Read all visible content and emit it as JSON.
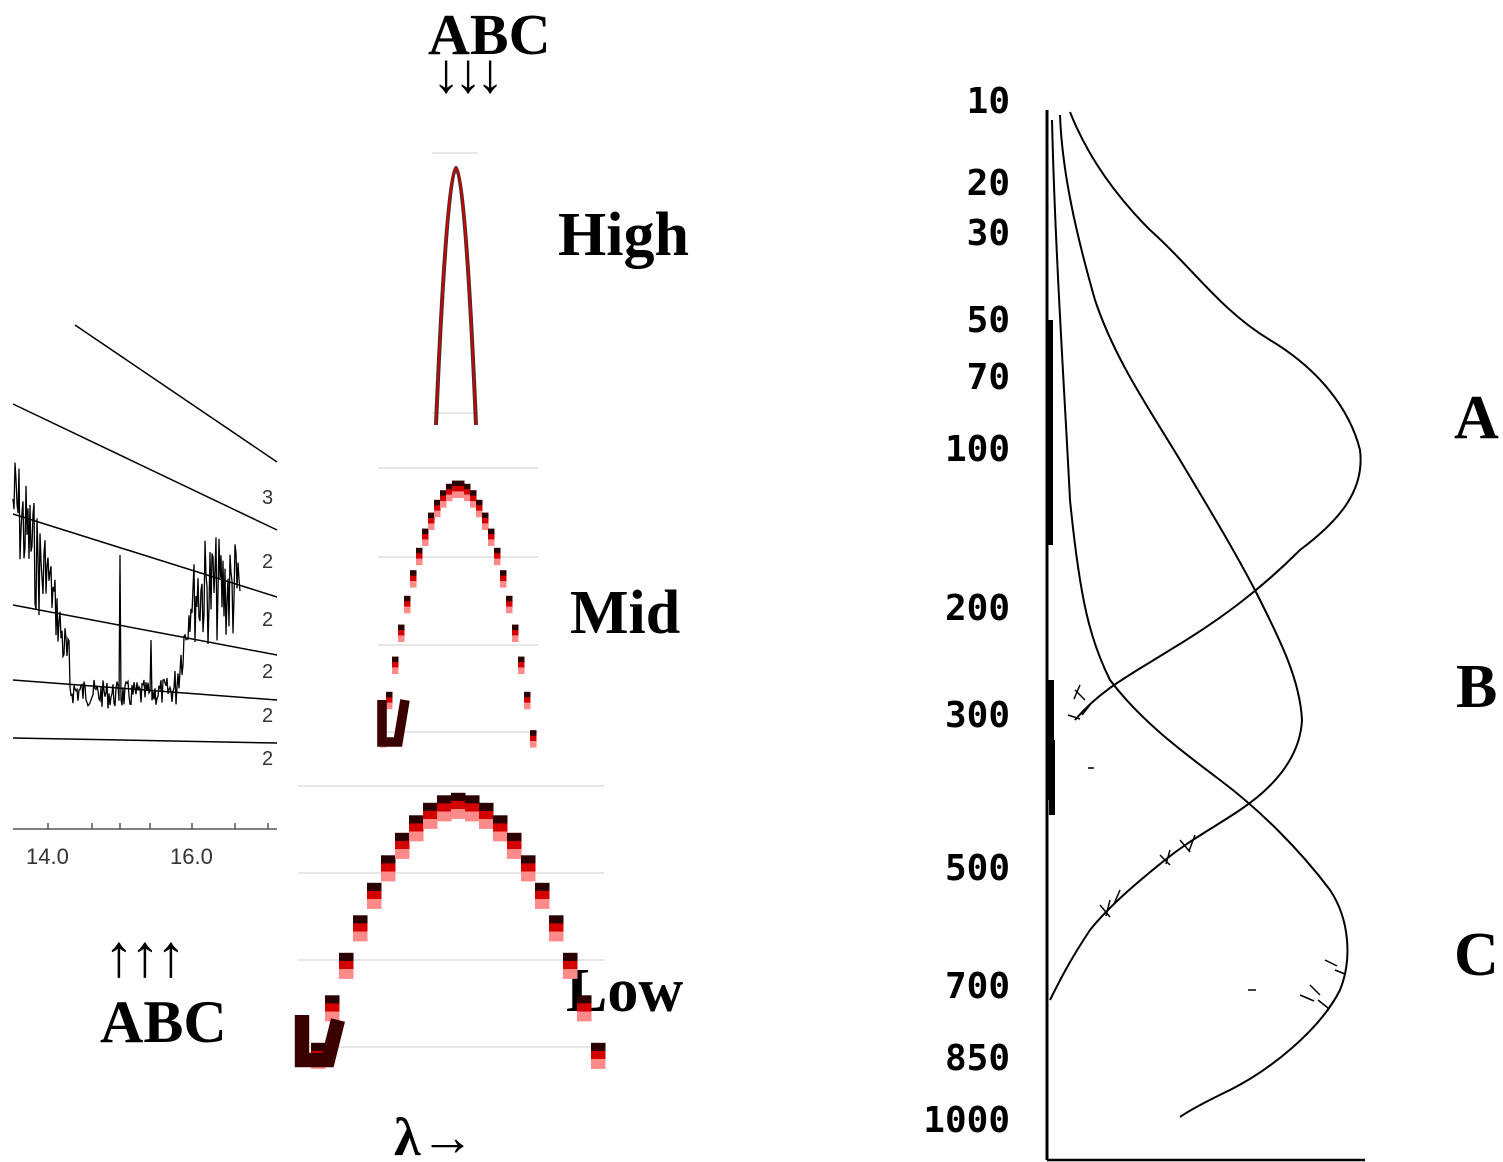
{
  "top_label": "ABC",
  "top_arrows": "↓↓↓",
  "bottom_arrows": "↑↑↑",
  "bottom_label": "ABC",
  "wavelength_label": "λ→",
  "panels": {
    "high": "High",
    "mid": "Mid",
    "low": "Low"
  },
  "spectrum": {
    "x_ticks": [
      "14.0",
      "16.0"
    ],
    "right_ticks": [
      "3",
      "2",
      "2",
      "2",
      "2",
      "2"
    ]
  },
  "profile": {
    "pressure_levels": [
      "10",
      "20",
      "30",
      "50",
      "70",
      "100",
      "200",
      "300",
      "500",
      "700",
      "850",
      "1000"
    ],
    "curve_labels": [
      "A",
      "B",
      "C"
    ]
  },
  "colors": {
    "ink": "#000000",
    "peak_red": "#d40000",
    "grid_gray": "#d0d0d0"
  }
}
